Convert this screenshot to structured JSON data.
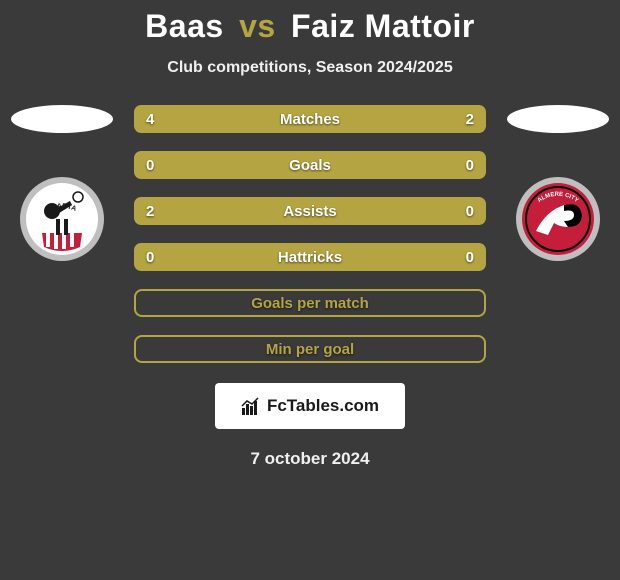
{
  "title": {
    "left": "Baas",
    "vs": "vs",
    "right": "Faiz Mattoir",
    "left_color": "#ffffff",
    "vs_color": "#b5a542",
    "right_color": "#ffffff",
    "fontsize": 32
  },
  "subtitle": "Club competitions, Season 2024/2025",
  "background_color": "#3a3a3a",
  "accent_left": "#b5a542",
  "accent_right": "#b5a542",
  "ellipse": {
    "left_color": "#ffffff",
    "right_color": "#ffffff",
    "width": 102,
    "height": 28
  },
  "badge_left": {
    "ring_color": "#bfbfbf",
    "inner_bg": "#ffffff",
    "stripe_color": "#c41e3a",
    "text": "SPARTA"
  },
  "badge_right": {
    "ring_color": "#bfbfbf",
    "inner_bg": "#c41e3a",
    "accent": "#ffffff",
    "text": "ALMERE CITY"
  },
  "bars": [
    {
      "label": "Matches",
      "left_val": "4",
      "right_val": "2",
      "left_num": 4,
      "right_num": 2,
      "left_pct": 66.7,
      "right_pct": 33.3,
      "left_color": "#b5a542",
      "right_color": "#b5a542",
      "bg_color": "#5a5a5a",
      "show_vals": true
    },
    {
      "label": "Goals",
      "left_val": "0",
      "right_val": "0",
      "left_num": 0,
      "right_num": 0,
      "left_pct": 50,
      "right_pct": 50,
      "left_color": "#b5a542",
      "right_color": "#b5a542",
      "bg_color": "#5a5a5a",
      "show_vals": true
    },
    {
      "label": "Assists",
      "left_val": "2",
      "right_val": "0",
      "left_num": 2,
      "right_num": 0,
      "left_pct": 78,
      "right_pct": 22,
      "left_color": "#b5a542",
      "right_color": "#b5a542",
      "bg_color": "#5a5a5a",
      "show_vals": true
    },
    {
      "label": "Hattricks",
      "left_val": "0",
      "right_val": "0",
      "left_num": 0,
      "right_num": 0,
      "left_pct": 50,
      "right_pct": 50,
      "left_color": "#b5a542",
      "right_color": "#b5a542",
      "bg_color": "#5a5a5a",
      "show_vals": true
    },
    {
      "label": "Goals per match",
      "left_val": "",
      "right_val": "",
      "empty": true,
      "border_color": "#b5a542",
      "label_color": "#b5a542"
    },
    {
      "label": "Min per goal",
      "left_val": "",
      "right_val": "",
      "empty": true,
      "border_color": "#b5a542",
      "label_color": "#b5a542"
    }
  ],
  "watermark": {
    "text": "FcTables.com",
    "bg": "#ffffff",
    "fg": "#1a1a1a"
  },
  "date": "7 october 2024"
}
